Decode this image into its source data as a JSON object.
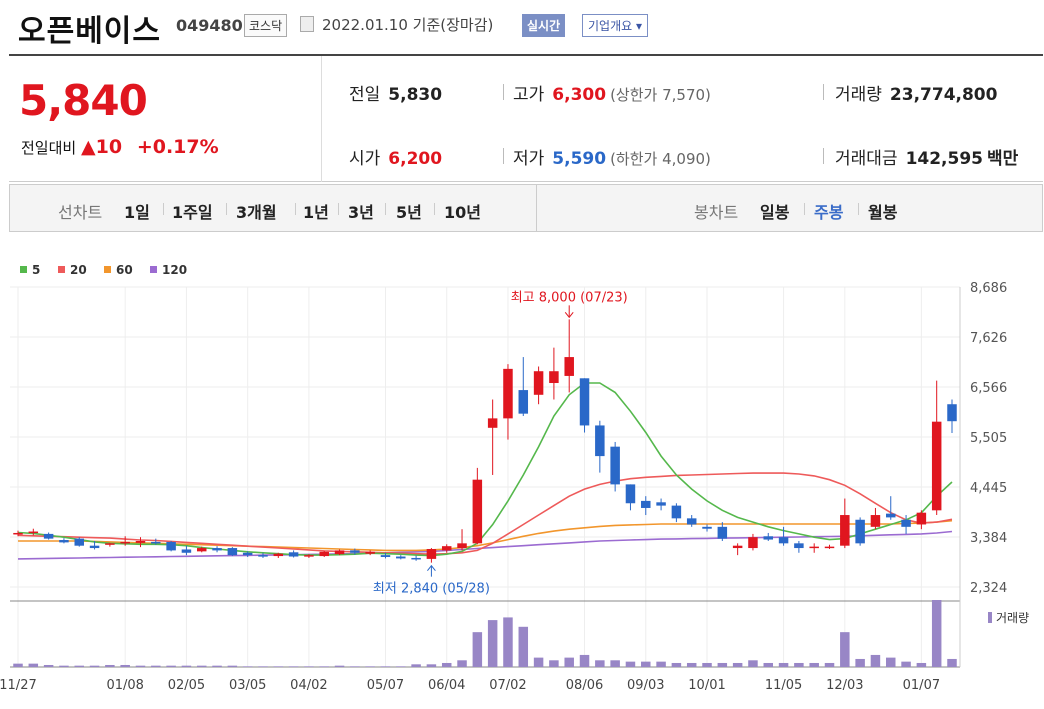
{
  "header": {
    "name": "오픈베이스",
    "code": "049480",
    "market": "코스닥",
    "date": "2022.01.10 기준(장마감)",
    "realtime": "실시간",
    "company_info": "기업개요 ▾"
  },
  "quote": {
    "price": "5,840",
    "change_label": "전일대비",
    "change": "▲10",
    "change_pct": "+0.17%",
    "prev_label": "전일",
    "prev": "5,830",
    "open_label": "시가",
    "open": "6,200",
    "high_label": "고가",
    "high": "6,300",
    "upper_limit": "(상한가 7,570)",
    "low_label": "저가",
    "low": "5,590",
    "lower_limit": "(하한가 4,090)",
    "volume_label": "거래량",
    "volume": "23,774,800",
    "amount_label": "거래대금",
    "amount": "142,595",
    "amount_unit": "백만"
  },
  "tabs": {
    "line_label": "선차트",
    "periods": [
      "1일",
      "1주일",
      "3개월",
      "1년",
      "3년",
      "5년",
      "10년"
    ],
    "candle_label": "봉차트",
    "candles": [
      "일봉",
      "주봉",
      "월봉"
    ],
    "active_candle": "주봉"
  },
  "colors": {
    "up": "#e0161f",
    "down": "#2a68c8",
    "ma5": "#55b84c",
    "ma20": "#ee5a5a",
    "ma60": "#f2962c",
    "ma120": "#9b6bd1",
    "volume": "#9886c6"
  },
  "chart_data": {
    "type": "candlestick",
    "legend": [
      {
        "name": "5",
        "color": "#55b84c"
      },
      {
        "name": "20",
        "color": "#ee5a5a"
      },
      {
        "name": "60",
        "color": "#f2962c"
      },
      {
        "name": "120",
        "color": "#9b6bd1"
      }
    ],
    "y_ticks": [
      8686,
      7626,
      6566,
      5505,
      4445,
      3384,
      2324
    ],
    "ylim": [
      2324,
      8686
    ],
    "x_labels": [
      "11/27",
      "01/08",
      "02/05",
      "03/05",
      "04/02",
      "05/07",
      "06/04",
      "07/02",
      "08/06",
      "09/03",
      "10/01",
      "11/05",
      "12/03",
      "01/07"
    ],
    "high_annotation": "최고 8,000 (07/23)",
    "low_annotation": "최저 2,840 (05/28)",
    "volume_label": "거래량",
    "candles": [
      {
        "o": 3450,
        "h": 3520,
        "l": 3400,
        "c": 3470
      },
      {
        "o": 3470,
        "h": 3560,
        "l": 3420,
        "c": 3500
      },
      {
        "o": 3450,
        "h": 3480,
        "l": 3330,
        "c": 3350
      },
      {
        "o": 3320,
        "h": 3360,
        "l": 3250,
        "c": 3270
      },
      {
        "o": 3350,
        "h": 3380,
        "l": 3180,
        "c": 3200
      },
      {
        "o": 3200,
        "h": 3300,
        "l": 3120,
        "c": 3150
      },
      {
        "o": 3230,
        "h": 3260,
        "l": 3180,
        "c": 3250
      },
      {
        "o": 3260,
        "h": 3400,
        "l": 3200,
        "c": 3280
      },
      {
        "o": 3260,
        "h": 3380,
        "l": 3170,
        "c": 3300
      },
      {
        "o": 3280,
        "h": 3350,
        "l": 3220,
        "c": 3250
      },
      {
        "o": 3280,
        "h": 3300,
        "l": 3080,
        "c": 3100
      },
      {
        "o": 3120,
        "h": 3200,
        "l": 3000,
        "c": 3050
      },
      {
        "o": 3080,
        "h": 3180,
        "l": 3060,
        "c": 3150
      },
      {
        "o": 3150,
        "h": 3190,
        "l": 3060,
        "c": 3100
      },
      {
        "o": 3150,
        "h": 3170,
        "l": 2980,
        "c": 3000
      },
      {
        "o": 3050,
        "h": 3080,
        "l": 2960,
        "c": 3000
      },
      {
        "o": 3000,
        "h": 3050,
        "l": 2940,
        "c": 2970
      },
      {
        "o": 2980,
        "h": 3050,
        "l": 2940,
        "c": 3030
      },
      {
        "o": 3060,
        "h": 3100,
        "l": 2950,
        "c": 2970
      },
      {
        "o": 2970,
        "h": 3020,
        "l": 2940,
        "c": 3000
      },
      {
        "o": 2980,
        "h": 3090,
        "l": 2960,
        "c": 3070
      },
      {
        "o": 3020,
        "h": 3120,
        "l": 3000,
        "c": 3100
      },
      {
        "o": 3100,
        "h": 3140,
        "l": 3010,
        "c": 3050
      },
      {
        "o": 3030,
        "h": 3100,
        "l": 3000,
        "c": 3070
      },
      {
        "o": 3000,
        "h": 3050,
        "l": 2930,
        "c": 2960
      },
      {
        "o": 2970,
        "h": 3000,
        "l": 2910,
        "c": 2930
      },
      {
        "o": 2940,
        "h": 2990,
        "l": 2880,
        "c": 2920
      },
      {
        "o": 2920,
        "h": 3150,
        "l": 2840,
        "c": 3130
      },
      {
        "o": 3100,
        "h": 3230,
        "l": 3050,
        "c": 3190
      },
      {
        "o": 3150,
        "h": 3550,
        "l": 3100,
        "c": 3250
      },
      {
        "o": 3250,
        "h": 4850,
        "l": 3230,
        "c": 4600
      },
      {
        "o": 5700,
        "h": 6300,
        "l": 4700,
        "c": 5900
      },
      {
        "o": 5900,
        "h": 7050,
        "l": 5450,
        "c": 6950
      },
      {
        "o": 6500,
        "h": 7200,
        "l": 5950,
        "c": 6000
      },
      {
        "o": 6400,
        "h": 7000,
        "l": 6200,
        "c": 6900
      },
      {
        "o": 6650,
        "h": 7400,
        "l": 6300,
        "c": 6900
      },
      {
        "o": 6800,
        "h": 8000,
        "l": 6450,
        "c": 7200
      },
      {
        "o": 6750,
        "h": 6750,
        "l": 5600,
        "c": 5750
      },
      {
        "o": 5750,
        "h": 5850,
        "l": 4750,
        "c": 5100
      },
      {
        "o": 5300,
        "h": 5400,
        "l": 4350,
        "c": 4500
      },
      {
        "o": 4500,
        "h": 4500,
        "l": 3950,
        "c": 4100
      },
      {
        "o": 4150,
        "h": 4250,
        "l": 3850,
        "c": 4000
      },
      {
        "o": 4120,
        "h": 4200,
        "l": 3950,
        "c": 4050
      },
      {
        "o": 4050,
        "h": 4100,
        "l": 3700,
        "c": 3780
      },
      {
        "o": 3780,
        "h": 3850,
        "l": 3600,
        "c": 3650
      },
      {
        "o": 3600,
        "h": 3650,
        "l": 3500,
        "c": 3560
      },
      {
        "o": 3600,
        "h": 3700,
        "l": 3300,
        "c": 3350
      },
      {
        "o": 3150,
        "h": 3250,
        "l": 3000,
        "c": 3200
      },
      {
        "o": 3150,
        "h": 3450,
        "l": 3100,
        "c": 3380
      },
      {
        "o": 3400,
        "h": 3470,
        "l": 3300,
        "c": 3330
      },
      {
        "o": 3380,
        "h": 3600,
        "l": 3200,
        "c": 3250
      },
      {
        "o": 3250,
        "h": 3300,
        "l": 3050,
        "c": 3150
      },
      {
        "o": 3150,
        "h": 3250,
        "l": 3050,
        "c": 3180
      },
      {
        "o": 3180,
        "h": 3220,
        "l": 3130,
        "c": 3180
      },
      {
        "o": 3200,
        "h": 4200,
        "l": 3150,
        "c": 3850
      },
      {
        "o": 3750,
        "h": 3800,
        "l": 3200,
        "c": 3250
      },
      {
        "o": 3600,
        "h": 4000,
        "l": 3550,
        "c": 3850
      },
      {
        "o": 3880,
        "h": 4250,
        "l": 3750,
        "c": 3800
      },
      {
        "o": 3750,
        "h": 3850,
        "l": 3450,
        "c": 3600
      },
      {
        "o": 3650,
        "h": 3950,
        "l": 3550,
        "c": 3900
      },
      {
        "o": 3950,
        "h": 6700,
        "l": 3850,
        "c": 5830
      },
      {
        "o": 6200,
        "h": 6300,
        "l": 5590,
        "c": 5840
      }
    ],
    "volume": [
      2.5,
      2.5,
      1.5,
      1,
      1,
      1,
      1.5,
      1.5,
      1,
      1,
      1,
      1,
      1,
      1,
      1,
      0.5,
      0.5,
      0.5,
      0.5,
      0.5,
      0.5,
      1,
      0.5,
      0.5,
      0.5,
      0.5,
      2,
      2,
      3,
      5,
      26,
      35,
      37,
      30,
      7,
      5,
      7,
      9,
      5,
      5,
      4,
      4,
      4,
      3,
      3,
      3,
      3,
      3,
      5,
      3,
      3,
      3,
      3,
      3,
      26,
      6,
      9,
      7,
      4,
      3,
      50,
      6
    ],
    "ma5": [
      3480,
      3460,
      3420,
      3380,
      3330,
      3280,
      3250,
      3240,
      3230,
      3230,
      3220,
      3200,
      3160,
      3130,
      3100,
      3070,
      3050,
      3030,
      3010,
      3000,
      3000,
      3010,
      3020,
      3040,
      3030,
      3020,
      3000,
      2990,
      3020,
      3080,
      3250,
      3650,
      4150,
      4700,
      5300,
      5950,
      6400,
      6650,
      6650,
      6450,
      6050,
      5600,
      5100,
      4700,
      4400,
      4150,
      3950,
      3800,
      3700,
      3600,
      3520,
      3450,
      3380,
      3330,
      3350,
      3450,
      3550,
      3650,
      3750,
      3900,
      4250,
      4550
    ],
    "ma20": [
      3420,
      3410,
      3400,
      3390,
      3380,
      3370,
      3360,
      3340,
      3320,
      3310,
      3290,
      3270,
      3250,
      3230,
      3210,
      3190,
      3170,
      3150,
      3130,
      3110,
      3090,
      3080,
      3070,
      3060,
      3050,
      3040,
      3030,
      3020,
      3030,
      3050,
      3100,
      3250,
      3450,
      3650,
      3850,
      4050,
      4250,
      4400,
      4500,
      4570,
      4620,
      4650,
      4670,
      4690,
      4700,
      4710,
      4720,
      4730,
      4740,
      4740,
      4740,
      4720,
      4680,
      4600,
      4480,
      4300,
      4100,
      3900,
      3750,
      3680,
      3700,
      3760
    ],
    "ma60": [
      3300,
      3300,
      3300,
      3300,
      3300,
      3290,
      3280,
      3270,
      3260,
      3250,
      3240,
      3230,
      3220,
      3210,
      3200,
      3190,
      3180,
      3170,
      3160,
      3150,
      3140,
      3130,
      3120,
      3110,
      3100,
      3100,
      3100,
      3110,
      3130,
      3160,
      3200,
      3260,
      3330,
      3400,
      3460,
      3510,
      3550,
      3580,
      3610,
      3630,
      3640,
      3650,
      3660,
      3660,
      3660,
      3660,
      3660,
      3660,
      3660,
      3660,
      3660,
      3660,
      3660,
      3660,
      3660,
      3660,
      3660,
      3660,
      3670,
      3680,
      3700,
      3730
    ],
    "ma120": [
      2920,
      2925,
      2930,
      2935,
      2940,
      2945,
      2950,
      2955,
      2960,
      2965,
      2970,
      2975,
      2980,
      2985,
      2990,
      2995,
      3000,
      3005,
      3010,
      3015,
      3020,
      3025,
      3030,
      3040,
      3050,
      3060,
      3070,
      3080,
      3100,
      3120,
      3140,
      3160,
      3180,
      3200,
      3220,
      3240,
      3260,
      3280,
      3300,
      3310,
      3320,
      3330,
      3340,
      3345,
      3350,
      3355,
      3360,
      3365,
      3370,
      3375,
      3380,
      3385,
      3390,
      3395,
      3400,
      3410,
      3420,
      3430,
      3440,
      3450,
      3470,
      3500
    ]
  }
}
